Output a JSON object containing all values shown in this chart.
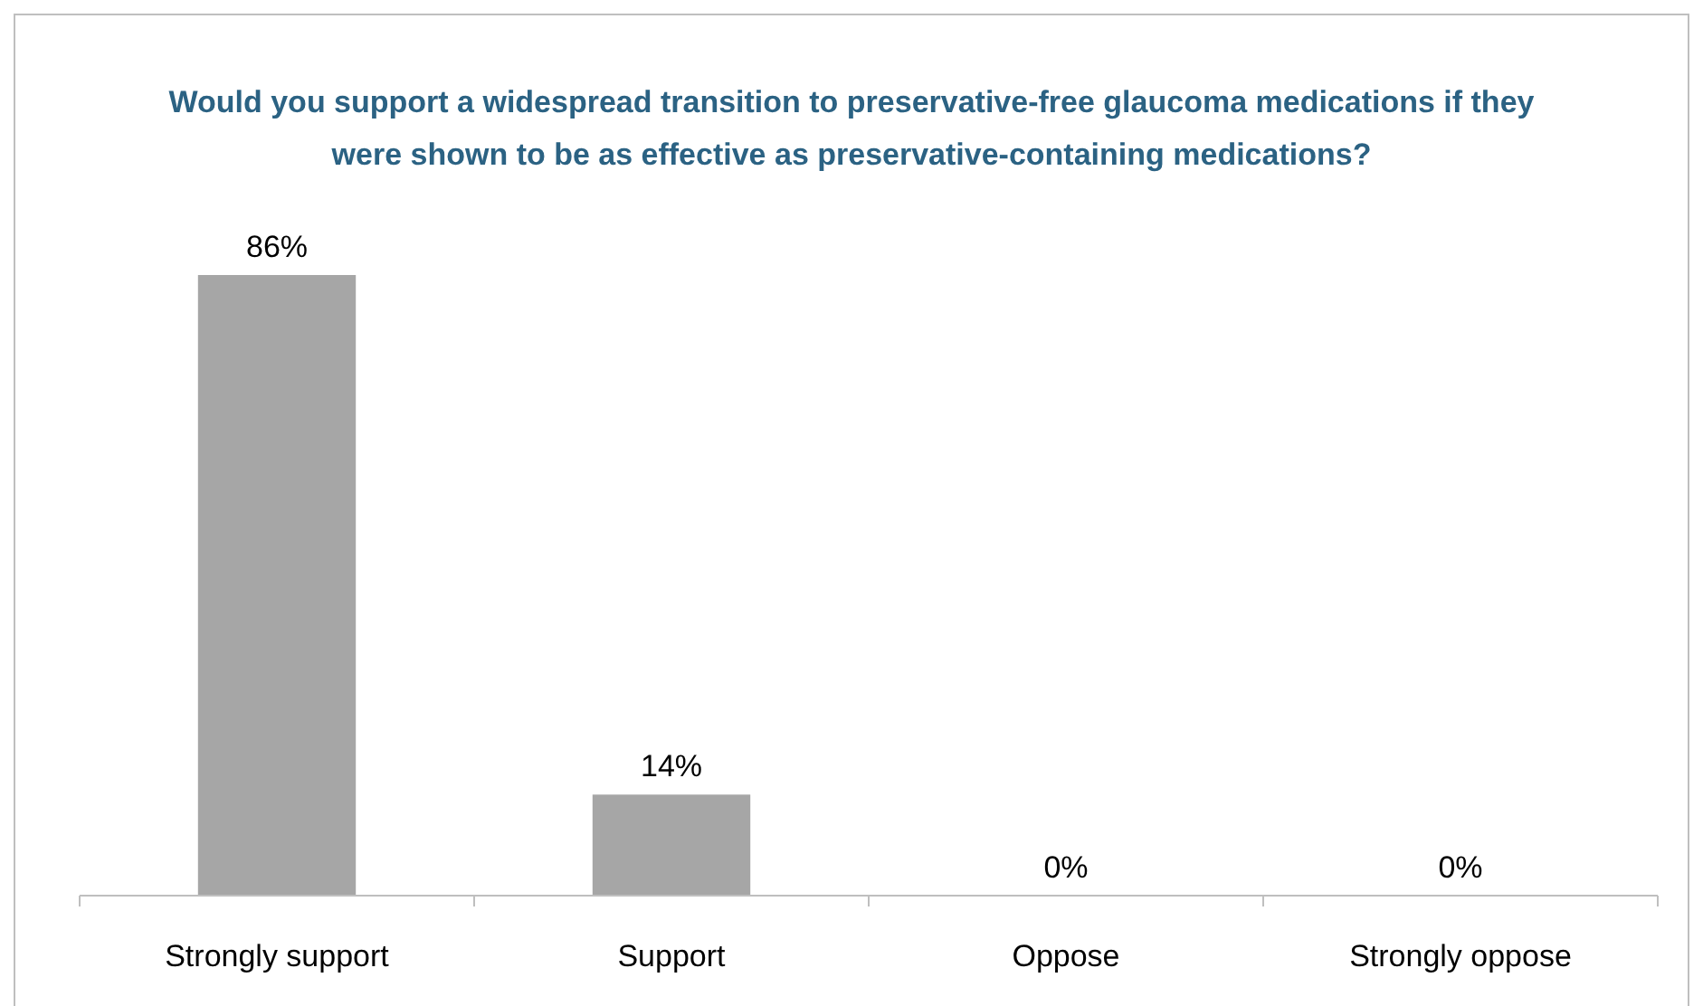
{
  "chart_data": {
    "type": "bar",
    "title": "Would you support a widespread transition to preservative-free glaucoma medications if they were shown to be as effective as preservative-containing medications?",
    "categories": [
      "Strongly support",
      "Support",
      "Oppose",
      "Strongly oppose"
    ],
    "values": [
      86,
      14,
      0,
      0
    ],
    "color": "#a6a6a6",
    "value_labels": [
      "86%",
      "14%",
      "0%",
      "0%"
    ],
    "tick_labels": "x"
  }
}
